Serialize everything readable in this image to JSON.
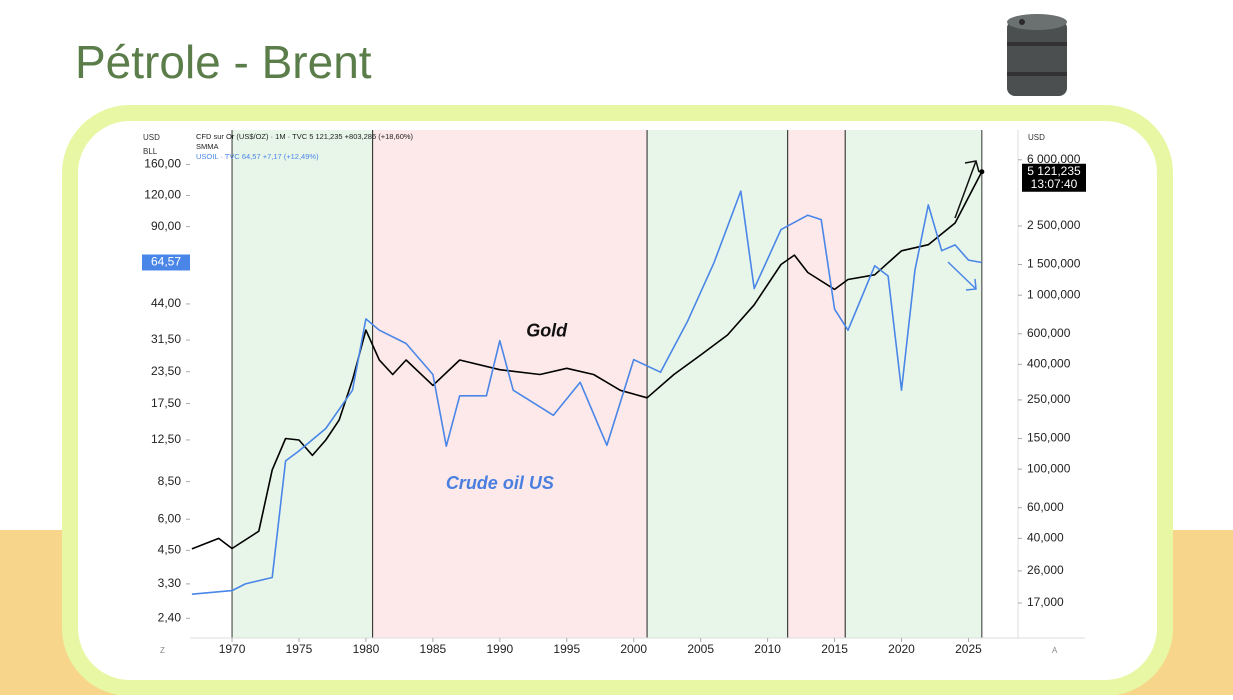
{
  "chart_data": {
    "type": "line",
    "title": "Pétrole - Brent",
    "legend_lines": [
      "CFD sur Or (US$/OZ) · 1M · TVC  5 121,235  +803,286 (+18,60%)",
      "SMMA",
      "USOIL · TVC  64,57  +7,17 (+12,49%)"
    ],
    "y_unit": "USD",
    "y_unit_sub": "BLL",
    "y2_unit": "USD",
    "corner_left": "Z",
    "corner_right": "A",
    "log_scale": true,
    "xlim": [
      1966.86,
      2028.7
    ],
    "xticks": [
      1970,
      1975,
      1980,
      1985,
      1990,
      1995,
      2000,
      2005,
      2010,
      2015,
      2020,
      2025
    ],
    "ylim": [
      2.0,
      220
    ],
    "yticks": [
      {
        "value": 2.4,
        "label": "2,40"
      },
      {
        "value": 3.3,
        "label": "3,30"
      },
      {
        "value": 4.5,
        "label": "4,50"
      },
      {
        "value": 6,
        "label": "6,00"
      },
      {
        "value": 8.5,
        "label": "8,50"
      },
      {
        "value": 12.5,
        "label": "12,50"
      },
      {
        "value": 17.5,
        "label": "17,50"
      },
      {
        "value": 23.5,
        "label": "23,50"
      },
      {
        "value": 31.5,
        "label": "31,50"
      },
      {
        "value": 44,
        "label": "44,00"
      },
      {
        "value": 90,
        "label": "90,00"
      },
      {
        "value": 120,
        "label": "120,00"
      },
      {
        "value": 160,
        "label": "160,00"
      }
    ],
    "y2lim": [
      10700,
      8900000
    ],
    "y2ticks": [
      {
        "value": 17000,
        "label": "17,000"
      },
      {
        "value": 26000,
        "label": "26,000"
      },
      {
        "value": 40000,
        "label": "40,000"
      },
      {
        "value": 60000,
        "label": "60,000"
      },
      {
        "value": 100000,
        "label": "100,000"
      },
      {
        "value": 150000,
        "label": "150,000"
      },
      {
        "value": 250000,
        "label": "250,000"
      },
      {
        "value": 400000,
        "label": "400,000"
      },
      {
        "value": 600000,
        "label": "600,000"
      },
      {
        "value": 1000000,
        "label": "1 000,000"
      },
      {
        "value": 1500000,
        "label": "1 500,000"
      },
      {
        "value": 2500000,
        "label": "2 500,000"
      },
      {
        "value": 6000000,
        "label": "6 000,000"
      }
    ],
    "regions": [
      {
        "start": 1970,
        "end": 1980.5,
        "color": "#e8f6e9"
      },
      {
        "start": 1980.5,
        "end": 2001,
        "color": "#fde9e9"
      },
      {
        "start": 2001,
        "end": 2011.5,
        "color": "#e8f6e9"
      },
      {
        "start": 2011.5,
        "end": 2015.8,
        "color": "#fde9e9"
      },
      {
        "start": 2015.8,
        "end": 2026,
        "color": "#e8f6e9"
      }
    ],
    "annotations": [
      {
        "text": "Gold",
        "x": 1993.5,
        "y": 34,
        "color": "#111111"
      },
      {
        "text": "Crude oil US",
        "x": 1990,
        "y": 8.3,
        "color": "#4a7fe0"
      }
    ],
    "series": [
      {
        "name": "Gold",
        "color": "#000000",
        "axis": "y2",
        "price_label": "5 121,235",
        "time_label": "13:07:40",
        "x": [
          1967,
          1969,
          1970,
          1972,
          1973,
          1974,
          1975,
          1976,
          1977,
          1978,
          1979,
          1980,
          1981,
          1982,
          1983,
          1985,
          1987,
          1990,
          1993,
          1995,
          1997,
          1999,
          2001,
          2003,
          2005,
          2007,
          2009,
          2011,
          2012,
          2013,
          2015,
          2016,
          2018,
          2020,
          2022,
          2024,
          2026
        ],
        "values": [
          34800,
          40000,
          35000,
          44000,
          99000,
          150000,
          147000,
          120000,
          147000,
          192000,
          326000,
          630000,
          424000,
          350000,
          424000,
          303000,
          424000,
          373000,
          350000,
          380000,
          350000,
          284000,
          257000,
          350000,
          453000,
          590000,
          880000,
          1500000,
          1700000,
          1350000,
          1080000,
          1230000,
          1310000,
          1800000,
          1950000,
          2600000,
          5121235
        ]
      },
      {
        "name": "USOIL",
        "color": "#4a86e8",
        "price_label": "64,57",
        "x": [
          1967,
          1970,
          1971,
          1973,
          1974,
          1975,
          1977,
          1979,
          1980,
          1981,
          1983,
          1985,
          1986,
          1987,
          1989,
          1990,
          1991,
          1994,
          1996,
          1998,
          2000,
          2002,
          2004,
          2006,
          2008,
          2009,
          2011,
          2013,
          2014,
          2015,
          2016,
          2018,
          2019,
          2020,
          2021,
          2022,
          2023,
          2024,
          2025,
          2026
        ],
        "values": [
          3.0,
          3.1,
          3.3,
          3.5,
          10.3,
          11.3,
          13.9,
          19.8,
          38.3,
          34.5,
          30.5,
          22.9,
          11.8,
          18.8,
          18.8,
          31.3,
          19.8,
          15.7,
          21.3,
          11.9,
          26.3,
          23.4,
          37.3,
          64.6,
          125,
          50.7,
          87.5,
          100,
          96,
          41.9,
          34.5,
          62.6,
          57,
          19.8,
          60,
          110,
          72,
          76,
          66,
          64.57
        ]
      }
    ]
  }
}
